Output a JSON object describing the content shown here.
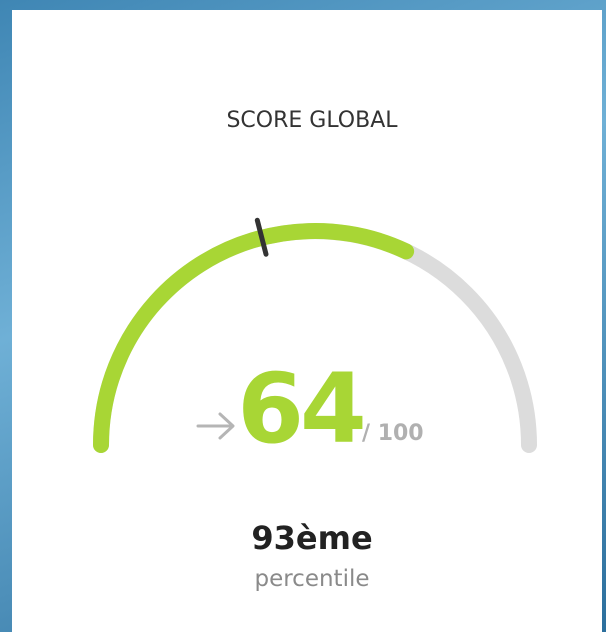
{
  "chart_data": {
    "type": "gauge",
    "title": "SCORE GLOBAL",
    "value": 64,
    "value_label": "64",
    "marker": 42,
    "range": [
      0,
      100
    ],
    "max_label": "/ 100",
    "color": "#a8d635",
    "track_color": "#dcdcdc",
    "marker_color": "#333333",
    "rank": "93ème",
    "rank_caption": "percentile"
  }
}
